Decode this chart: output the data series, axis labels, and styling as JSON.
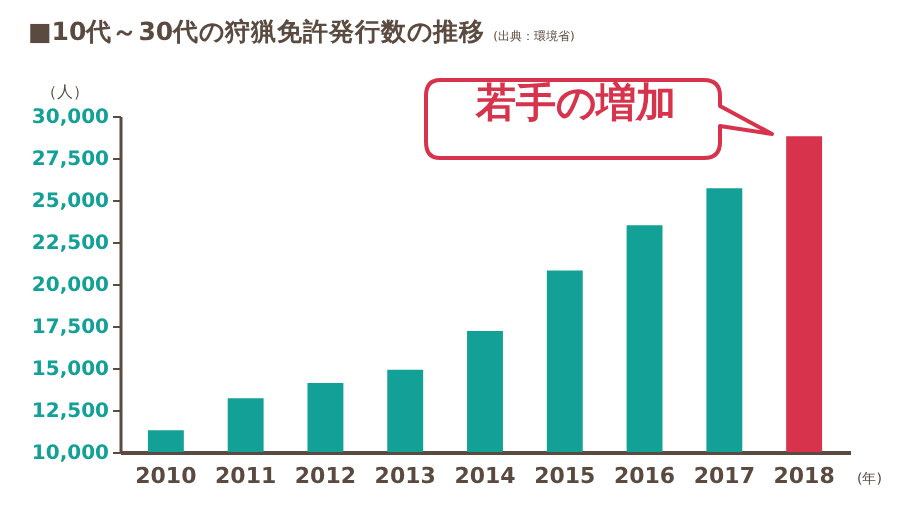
{
  "chart_data": {
    "type": "bar",
    "title": "■10代～30代の狩猟免許発行数の推移",
    "ylabel": "（人）",
    "xlabel": "(年)",
    "annotations": [
      "(出典：環境省)",
      "若手の増加"
    ],
    "categories": [
      "2010",
      "2011",
      "2012",
      "2013",
      "2014",
      "2015",
      "2016",
      "2017",
      "2018"
    ],
    "values": [
      11300,
      13200,
      14100,
      14900,
      17200,
      20800,
      23500,
      25700,
      28800
    ],
    "colors": [
      "#13a096",
      "#13a096",
      "#13a096",
      "#13a096",
      "#13a096",
      "#13a096",
      "#13a096",
      "#13a096",
      "#d8334c"
    ],
    "ylim": [
      10000,
      30000
    ],
    "yticks": [
      {
        "value": 10000,
        "label": "10,000"
      },
      {
        "value": 12500,
        "label": "12,500"
      },
      {
        "value": 15000,
        "label": "15,000"
      },
      {
        "value": 17500,
        "label": "17,500"
      },
      {
        "value": 20000,
        "label": "20,000"
      },
      {
        "value": 22500,
        "label": "22,500"
      },
      {
        "value": 25000,
        "label": "25,000"
      },
      {
        "value": 27500,
        "label": "27,500"
      },
      {
        "value": 30000,
        "label": "30,000"
      }
    ],
    "grid": false
  }
}
